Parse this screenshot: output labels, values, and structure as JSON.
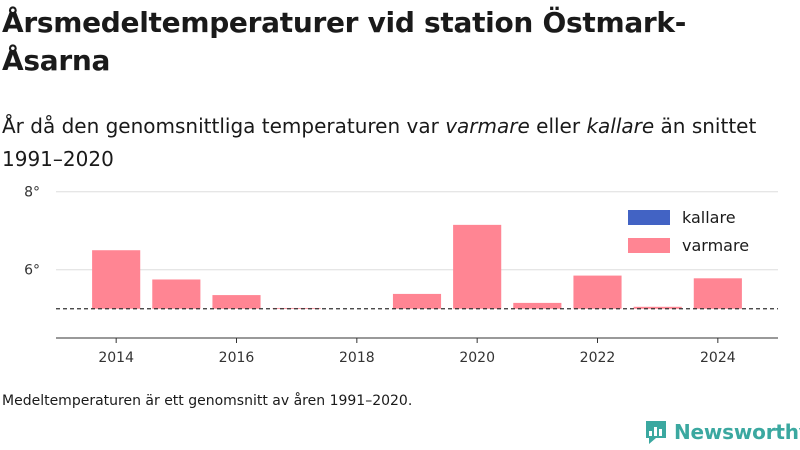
{
  "title": "Årsmedeltemperaturer vid station Östmark-Åsarna",
  "subtitle": {
    "part1": "År då den genomsnittliga temperaturen var ",
    "warm_word": "varmare",
    "part2": " eller ",
    "cold_word": "kallare",
    "part3": " än snittet 1991–2020"
  },
  "footnote": "Medeltemperaturen är ett genomsnitt av åren 1991–2020.",
  "logo_text": "Newsworthy",
  "chart_data": {
    "type": "bar",
    "categories": [
      2014,
      2015,
      2016,
      2017,
      2018,
      2019,
      2020,
      2021,
      2022,
      2023,
      2024
    ],
    "baseline": 5.0,
    "values": [
      6.5,
      5.75,
      5.35,
      5.02,
      null,
      5.38,
      7.15,
      5.15,
      5.85,
      5.05,
      5.78
    ],
    "ylim": [
      4.25,
      8.3
    ],
    "yticks": [
      {
        "value": 6,
        "label": "6°"
      },
      {
        "value": 8,
        "label": "8°"
      }
    ],
    "xticks": [
      2014,
      2016,
      2018,
      2020,
      2022,
      2024
    ],
    "xlim": [
      2013,
      2025
    ],
    "legend": [
      {
        "name": "kallare",
        "color": "#4263c4"
      },
      {
        "name": "varmare",
        "color": "#ff8593"
      }
    ],
    "legend_position": "top-right",
    "grid": true,
    "colors": {
      "warm": "#ff8593",
      "cold": "#4263c4",
      "baseline": "#333333",
      "grid": "#dddddd",
      "axis": "#333333"
    }
  }
}
